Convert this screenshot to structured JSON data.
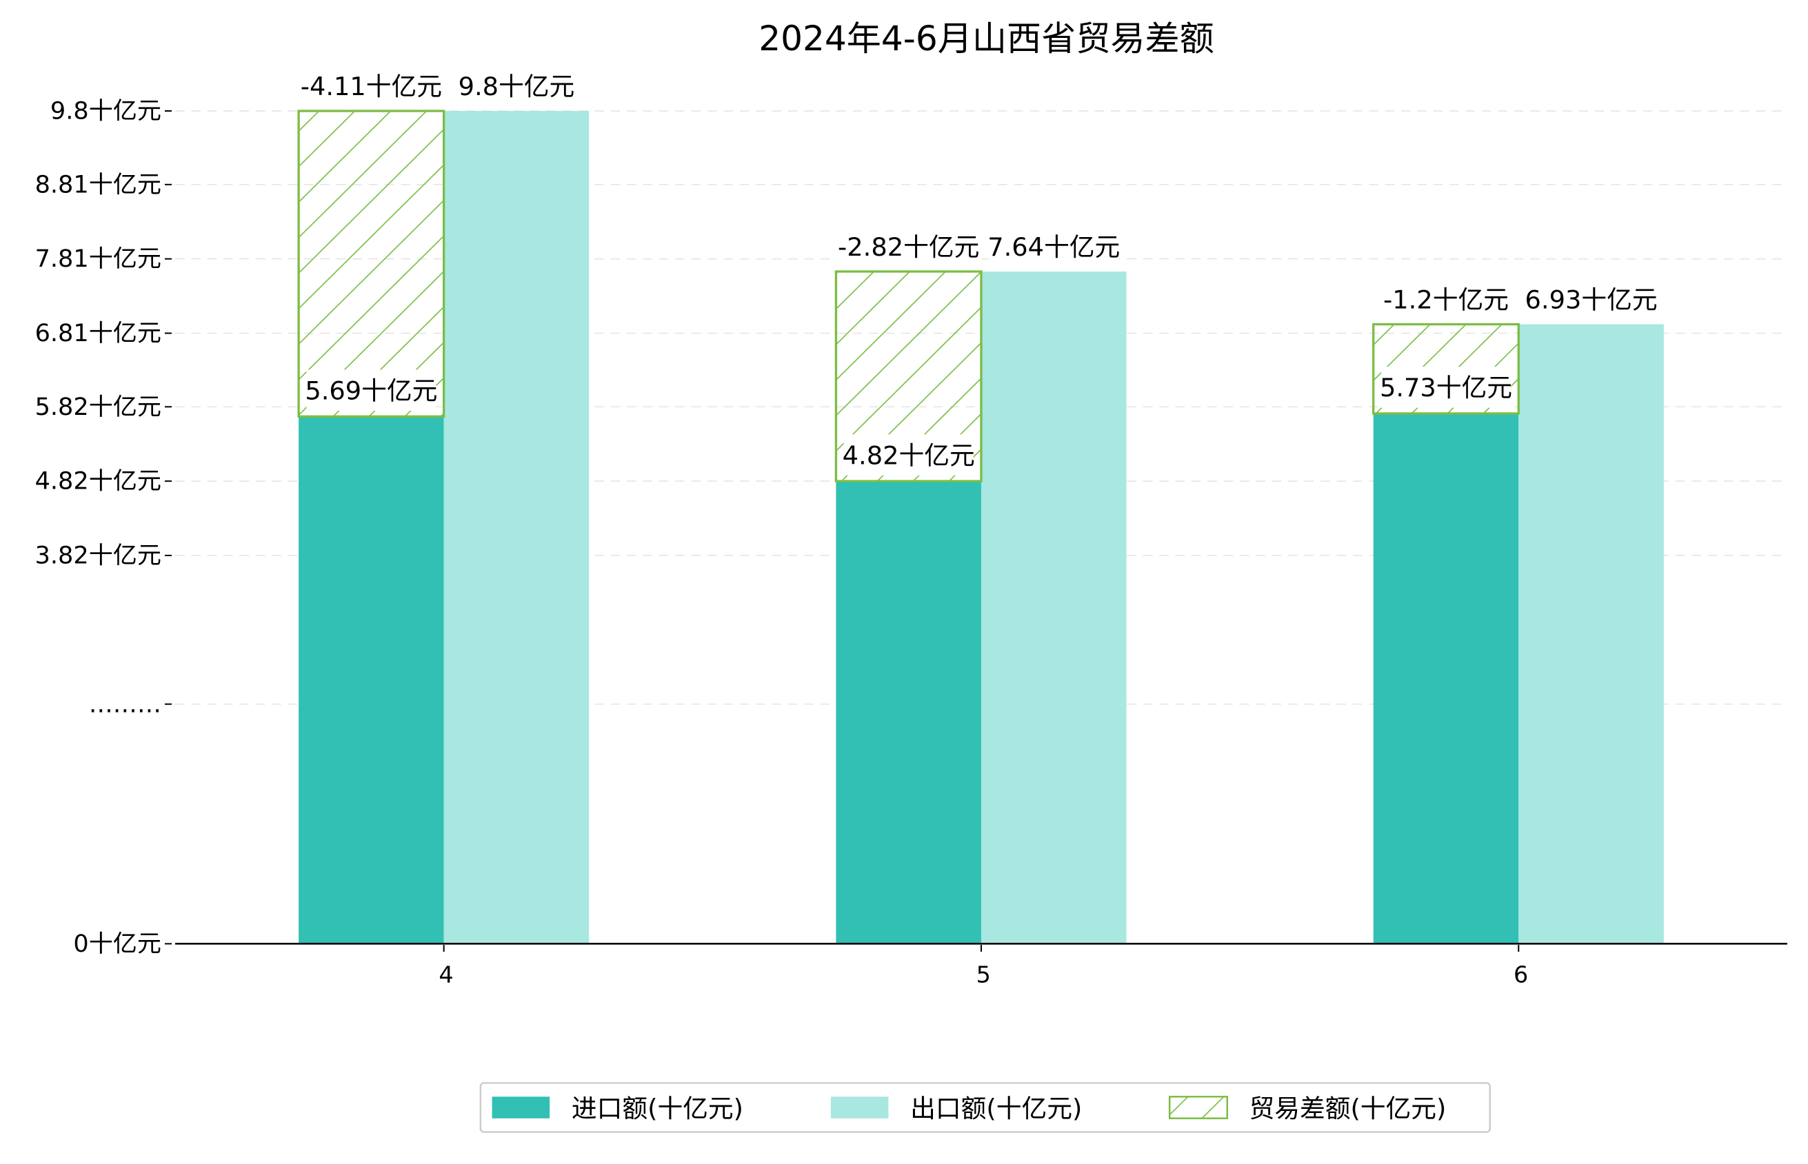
{
  "chart_data": {
    "type": "bar",
    "title": "2024年4-6月山西省贸易差额",
    "categories": [
      "4",
      "5",
      "6"
    ],
    "series": [
      {
        "name": "进口额(十亿元)",
        "values": [
          5.69,
          4.82,
          5.73
        ],
        "color": "#31c0b3"
      },
      {
        "name": "出口额(十亿元)",
        "values": [
          9.8,
          7.64,
          6.93
        ],
        "color": "#a9e7e1"
      },
      {
        "name": "贸易差额(十亿元)",
        "values": [
          -4.11,
          -2.82,
          -1.2
        ],
        "color": "#7cbd45",
        "pattern": "hatch"
      }
    ],
    "data_labels": {
      "imports": [
        "5.69十亿元",
        "4.82十亿元",
        "5.73十亿元"
      ],
      "exports": [
        "9.8十亿元",
        "7.64十亿元",
        "6.93十亿元"
      ],
      "balance": [
        "-4.11十亿元",
        "-2.82十亿元",
        "-1.2十亿元"
      ]
    },
    "y_ticks": [
      {
        "value": 0,
        "label": "0十亿元"
      },
      {
        "value": 1.82,
        "label": "………"
      },
      {
        "value": 3.82,
        "label": "3.82十亿元"
      },
      {
        "value": 4.82,
        "label": "4.82十亿元"
      },
      {
        "value": 5.82,
        "label": "5.82十亿元"
      },
      {
        "value": 6.81,
        "label": "6.81十亿元"
      },
      {
        "value": 7.81,
        "label": "7.81十亿元"
      },
      {
        "value": 8.81,
        "label": "8.81十亿元"
      },
      {
        "value": 9.8,
        "label": "9.8十亿元"
      }
    ],
    "ylim": [
      0,
      10.3
    ],
    "axis_break": {
      "data": [
        0,
        1.82,
        9.8
      ],
      "display": [
        0,
        2.82,
        9.8
      ]
    },
    "grid": "horizontal-dashed",
    "legend_position": "bottom-center"
  }
}
